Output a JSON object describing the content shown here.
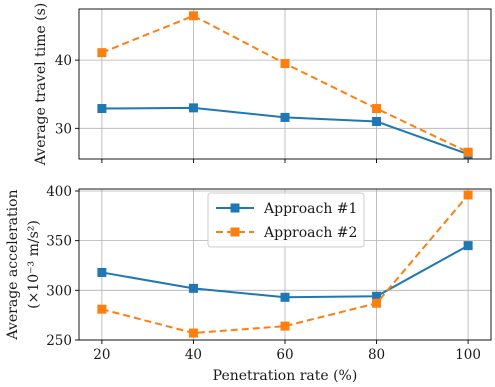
{
  "chart_data": [
    {
      "type": "line",
      "x": [
        20,
        40,
        60,
        80,
        100
      ],
      "series": [
        {
          "name": "Approach #1",
          "values": [
            32.9,
            33.0,
            31.6,
            31.0,
            26.2
          ],
          "color": "#1f77b4",
          "marker": "square",
          "line": "solid"
        },
        {
          "name": "Approach #2",
          "values": [
            41.1,
            46.5,
            39.5,
            32.9,
            26.5
          ],
          "color": "#ff7f0e",
          "marker": "square",
          "line": "dashed"
        }
      ],
      "ylabel": "Average travel time (s)",
      "xlabel": "",
      "xlim": [
        15,
        105
      ],
      "ylim": [
        25.5,
        47.5
      ],
      "yticks": [
        30,
        40
      ],
      "xticks": [
        20,
        40,
        60,
        80,
        100
      ],
      "show_x_tick_labels": false,
      "grid": true
    },
    {
      "type": "line",
      "x": [
        20,
        40,
        60,
        80,
        100
      ],
      "series": [
        {
          "name": "Approach #1",
          "values": [
            318,
            302,
            293,
            294,
            345
          ],
          "color": "#1f77b4",
          "marker": "square",
          "line": "solid"
        },
        {
          "name": "Approach #2",
          "values": [
            281,
            257,
            264,
            287,
            396
          ],
          "color": "#ff7f0e",
          "marker": "square",
          "line": "dashed"
        }
      ],
      "ylabel_line1": "Average acceleration",
      "ylabel_line2": "(×10⁻³ m/s²)",
      "xlabel": "Penetration rate (%)",
      "xlim": [
        15,
        105
      ],
      "ylim": [
        250,
        402
      ],
      "yticks": [
        250,
        300,
        350,
        400
      ],
      "xticks": [
        20,
        40,
        60,
        80,
        100
      ],
      "show_x_tick_labels": true,
      "grid": true,
      "legend": {
        "position": "top-center",
        "entries": [
          "Approach #1",
          "Approach #2"
        ]
      }
    }
  ]
}
